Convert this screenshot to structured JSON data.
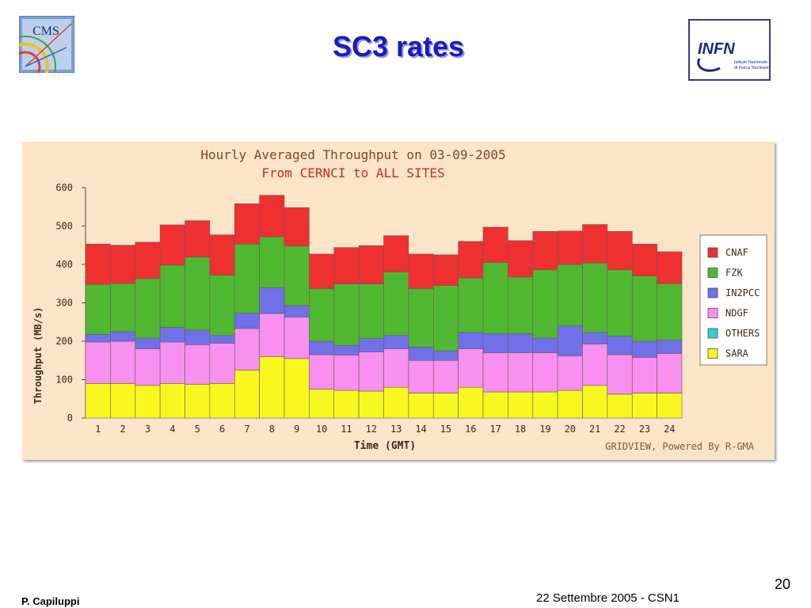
{
  "slide": {
    "title": "SC3 rates",
    "footer_left": "P. Capiluppi",
    "footer_right": "22 Settembre 2005 - CSN1",
    "page_number": "20"
  },
  "logos": {
    "left_text": "CMS",
    "right_text": "INFN",
    "right_subtext_1": "Istituto Nazionale",
    "right_subtext_2": "di Fisica Nucleare"
  },
  "chart_data": {
    "type": "bar",
    "stacked": true,
    "title": "Hourly Averaged Throughput on 03-09-2005",
    "subtitle": "From CERNCI to ALL SITES",
    "xlabel": "Time (GMT)",
    "ylabel": "Throughput (MB/s)",
    "ylim": [
      0,
      600
    ],
    "yticks": [
      0,
      100,
      200,
      300,
      400,
      500,
      600
    ],
    "categories": [
      "1",
      "2",
      "3",
      "4",
      "5",
      "6",
      "7",
      "8",
      "9",
      "10",
      "11",
      "12",
      "13",
      "14",
      "15",
      "16",
      "17",
      "18",
      "19",
      "20",
      "21",
      "22",
      "23",
      "24"
    ],
    "credit": "GRIDVIEW, Powered By R-GMA",
    "legend_position": "right",
    "series": [
      {
        "name": "SARA",
        "color": "#f8f820",
        "values": [
          90,
          90,
          85,
          90,
          88,
          90,
          125,
          160,
          155,
          75,
          72,
          70,
          80,
          65,
          65,
          80,
          68,
          68,
          68,
          72,
          85,
          62,
          65,
          65
        ]
      },
      {
        "name": "OTHERS",
        "color": "#30d0d0",
        "values": [
          0,
          0,
          0,
          0,
          0,
          0,
          0,
          0,
          0,
          0,
          0,
          0,
          0,
          0,
          0,
          0,
          0,
          0,
          0,
          0,
          0,
          0,
          0,
          0
        ]
      },
      {
        "name": "NDGF",
        "color": "#f890f0",
        "values": [
          108,
          110,
          95,
          108,
          103,
          105,
          108,
          112,
          108,
          90,
          92,
          102,
          100,
          85,
          85,
          100,
          102,
          102,
          102,
          90,
          108,
          103,
          93,
          103
        ]
      },
      {
        "name": "IN2PCC",
        "color": "#7070e8",
        "values": [
          20,
          25,
          28,
          38,
          38,
          20,
          40,
          67,
          30,
          35,
          25,
          35,
          35,
          35,
          25,
          43,
          50,
          50,
          38,
          78,
          30,
          48,
          42,
          35
        ]
      },
      {
        "name": "FZK",
        "color": "#50b830",
        "values": [
          130,
          125,
          155,
          162,
          190,
          157,
          180,
          133,
          155,
          137,
          160,
          142,
          165,
          152,
          170,
          142,
          185,
          147,
          178,
          160,
          181,
          173,
          170,
          147
        ]
      },
      {
        "name": "CNAF",
        "color": "#ee3030",
        "values": [
          105,
          100,
          95,
          105,
          95,
          105,
          105,
          108,
          100,
          90,
          95,
          100,
          95,
          90,
          80,
          95,
          92,
          95,
          100,
          87,
          100,
          100,
          83,
          83
        ]
      }
    ]
  }
}
